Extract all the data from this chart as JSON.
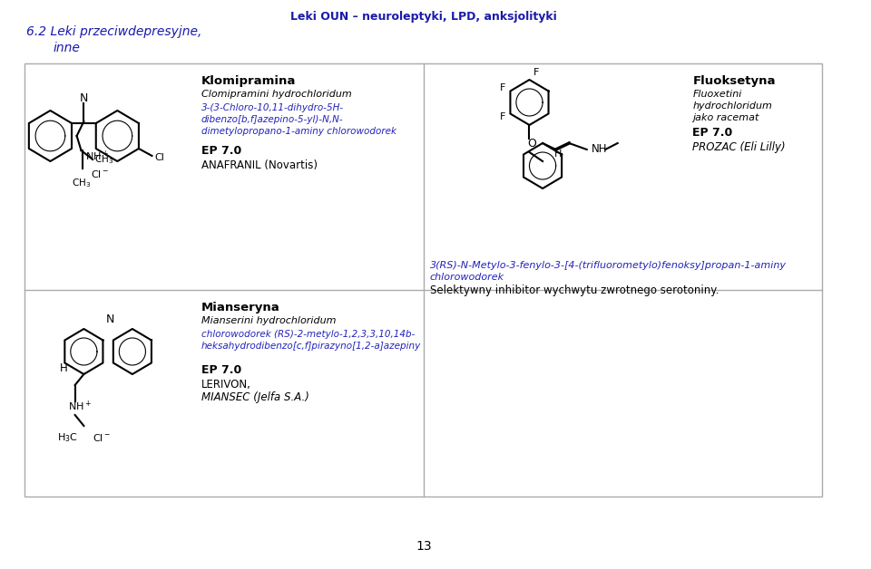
{
  "title_header": "Leki OUN – neuroleptyki, LPD, anksjolityki",
  "title_section": "6.2 Leki przeciwdepresyjne,\n     inne",
  "page_number": "13",
  "background_color": "#ffffff",
  "header_color": "#1a1aaa",
  "blue_text_color": "#2222bb",
  "black_text_color": "#000000",
  "grid_line_color": "#aaaaaa",
  "cell1": {
    "drug_name": "Klomipramina",
    "iupac_italic": "Clomipramini hydrochloridum",
    "iupac_blue": "3-(3-Chloro-10,11-dihydro-5H-\ndibenzo[b,f]azepino-5-yl)-N,N-\ndimetylopropano-1-aminy chlorowodorek",
    "ep": "EP 7.0",
    "brand": "ANAFRANIL (Novartis)"
  },
  "cell2": {
    "iupac_blue": "3(RS)-N-Metylo-3-fenylo-3-[4-(trifluorometylo)fenoksy]propan-1-aminy\nchlorowodorek",
    "description": "Selektywny inhibitor wychwytu zwrotnego serotoniny."
  },
  "cell3": {
    "drug_name": "Mianseryna",
    "iupac_italic": "Mianserini hydrochloridum",
    "iupac_blue": "chlorowodorek (RS)-2-metylo-1,2,3,3,10,14b-\nheksahydrodibenzo[c,f]pirazyno[1,2-a]azepiny",
    "ep": "EP 7.0",
    "brand1": "LERIVON,",
    "brand2": "MIANSEC (Jelfa S.A.)"
  },
  "cell4_right_top": {
    "drug_name": "Fluoksetyna",
    "iupac_italic": "Fluoxetini\nhydrochloridum",
    "note": "jako racemat",
    "ep": "EP 7.0",
    "brand": "PROZAC (Eli Lilly)"
  }
}
